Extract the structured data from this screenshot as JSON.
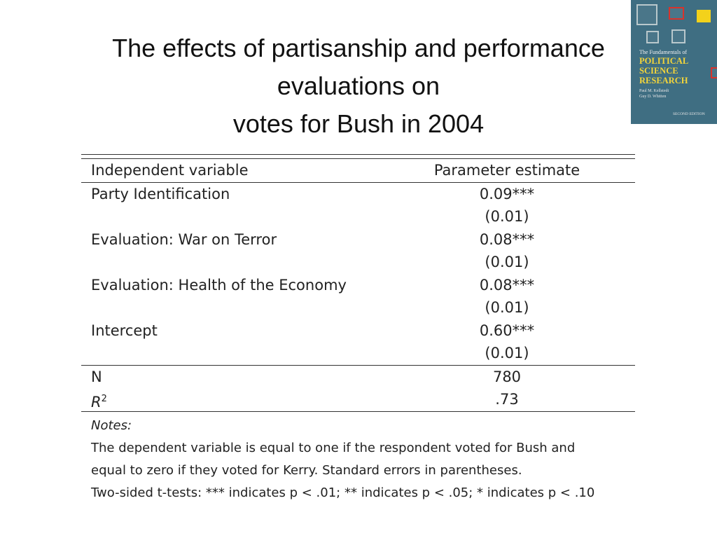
{
  "title": {
    "line1": "The effects of partisanship and performance",
    "line2": "evaluations on",
    "line3": "votes for Bush in 2004"
  },
  "book_cover": {
    "top_text": "The Fundamentals of",
    "main_line1": "POLITICAL",
    "main_line2": "SCIENCE",
    "main_line3": "RESEARCH",
    "author1": "Paul M. Kellstedt",
    "author2": "Guy D. Whitten",
    "edition": "SECOND EDITION"
  },
  "table": {
    "header": {
      "variable": "Independent variable",
      "estimate": "Parameter estimate"
    },
    "rows": [
      {
        "variable": "Party Identification",
        "estimate": "0.09***",
        "se": "(0.01)"
      },
      {
        "variable": "Evaluation:  War on Terror",
        "estimate": "0.08***",
        "se": "(0.01)"
      },
      {
        "variable": "Evaluation:  Health of the Economy",
        "estimate": "0.08***",
        "se": "(0.01)"
      },
      {
        "variable": "Intercept",
        "estimate": "0.60***",
        "se": "(0.01)"
      }
    ],
    "n_label": "N",
    "n_value": "780",
    "r2_label": "R",
    "r2_sup": "2",
    "r2_value": ".73",
    "notes": {
      "label": "Notes:",
      "line1": "The dependent variable is equal to one if the respondent voted for Bush and",
      "line2": "equal to zero if they voted for Kerry.  Standard errors in parentheses.",
      "line3": "Two-sided t-tests:  *** indicates p < .01; ** indicates p < .05; * indicates p < .10"
    }
  }
}
